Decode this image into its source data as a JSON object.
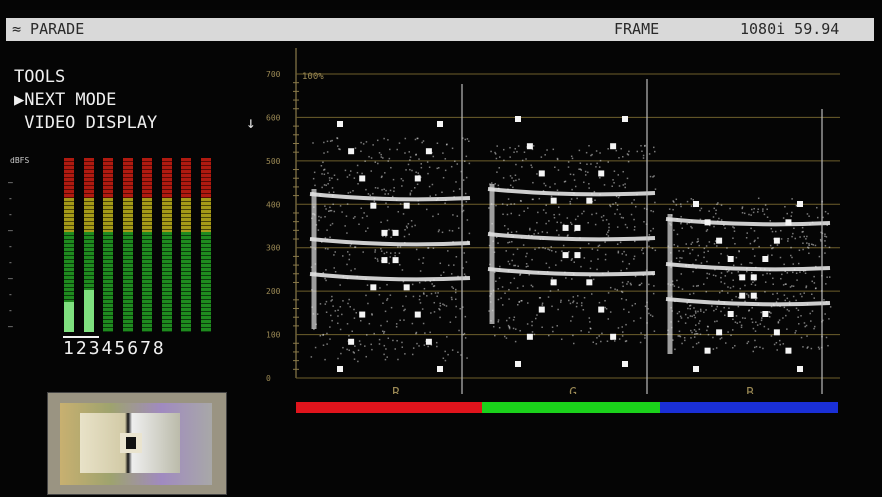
{
  "header": {
    "mode": "≈ PARADE",
    "frame": "FRAME",
    "format": "1080i 59.94"
  },
  "menu": {
    "items": [
      "TOOLS",
      "▶NEXT MODE",
      " VIDEO DISPLAY"
    ]
  },
  "audio_meters": {
    "unit_label": "dBFS",
    "channels": [
      "1",
      "2",
      "3",
      "4",
      "5",
      "6",
      "7",
      "8"
    ],
    "levels": [
      0.17,
      0.24,
      0,
      0,
      0,
      0,
      0,
      0
    ],
    "colors": {
      "high": "#b01a10",
      "mid": "#a59a18",
      "low": "#1f8b1f"
    }
  },
  "scope": {
    "scale_labels": [
      "700",
      "600",
      "500",
      "400",
      "300",
      "200",
      "100",
      "0"
    ],
    "percent_label": "100%",
    "channel_labels": [
      "R",
      "G",
      "B"
    ],
    "channel_colors": [
      "#e0141c",
      "#1bd21b",
      "#1a2fd6"
    ]
  },
  "down_arrow": "↓"
}
